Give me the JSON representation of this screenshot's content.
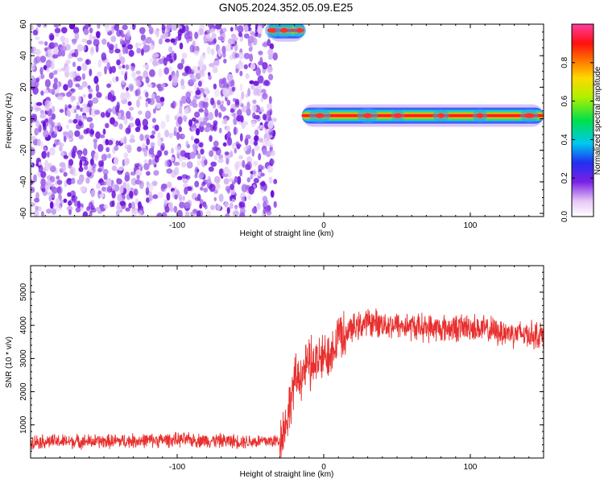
{
  "title": "GN05.2024.352.05.09.E25",
  "chart_data": [
    {
      "type": "heatmap",
      "xlabel": "Height of straight line (km)",
      "ylabel": "Frequency (Hz)",
      "xlim": [
        -200,
        150
      ],
      "ylim": [
        -62,
        60
      ],
      "xticks": [
        -100,
        0,
        100
      ],
      "yticks": [
        -60,
        -40,
        -20,
        0,
        20,
        40,
        60
      ],
      "noise_region_x": [
        -200,
        -33
      ],
      "features": [
        {
          "name": "",
          "x_start": -38,
          "x_end": -13,
          "freq_center": 56,
          "peak_amplitude": 0.95
        },
        {
          "name": "",
          "x_start": -15,
          "x_end": 150,
          "freq_center": 2,
          "peak_amplitude": 0.98
        }
      ],
      "colorbar": {
        "label": "Normalized spectral amplitude",
        "range": [
          0,
          1
        ],
        "ticks": [
          "0.0",
          "0.2",
          "0.4",
          "0.6",
          "0.8"
        ]
      },
      "grid": false
    },
    {
      "type": "line",
      "xlabel": "Height of straight line (km)",
      "ylabel": "SNR (10 * v/v)",
      "xlim": [
        -200,
        150
      ],
      "ylim": [
        0,
        5800
      ],
      "xticks": [
        -100,
        0,
        100
      ],
      "yticks": [
        1000,
        2000,
        3000,
        4000,
        5000
      ],
      "series": [
        {
          "name": "",
          "color": "#e8302e",
          "x": [
            -200,
            -150,
            -100,
            -50,
            -30,
            -25,
            -20,
            -10,
            0,
            5,
            10,
            15,
            20,
            30,
            50,
            80,
            100,
            120,
            150
          ],
          "values": [
            500,
            500,
            550,
            500,
            520,
            1200,
            2300,
            2800,
            3000,
            3300,
            3700,
            3800,
            3900,
            4100,
            4000,
            3900,
            3950,
            3800,
            3700
          ]
        }
      ],
      "grid": false
    }
  ]
}
